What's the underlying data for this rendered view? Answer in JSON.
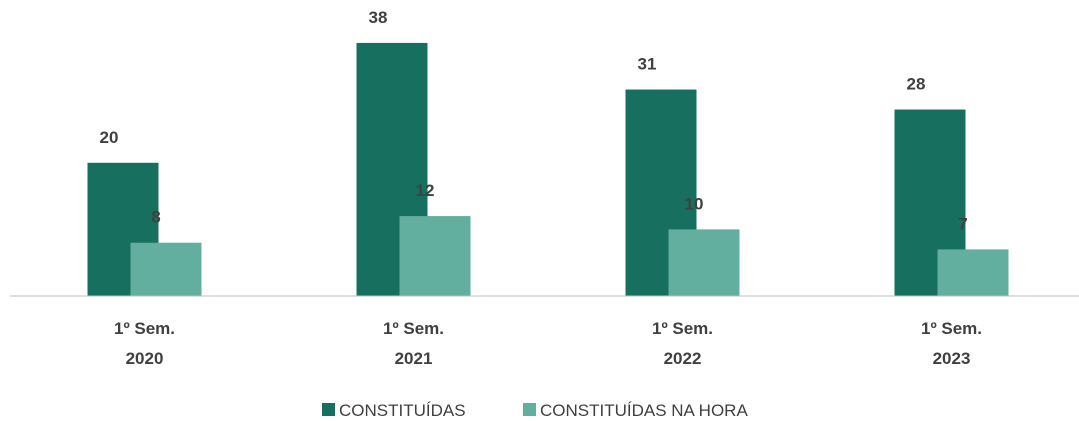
{
  "chart_data": {
    "type": "bar",
    "categories": [
      "1º Sem.\n2020",
      "1º Sem.\n2021",
      "1º Sem.\n2022",
      "1º Sem.\n2023"
    ],
    "series": [
      {
        "name": "CONSTITUÍDAS",
        "color": "#17705f",
        "values": [
          20,
          38,
          31,
          28
        ]
      },
      {
        "name": "CONSTITUÍDAS NA HORA",
        "color": "#62ae9f",
        "values": [
          8,
          12,
          10,
          7
        ]
      }
    ],
    "ylim": [
      0,
      40
    ],
    "legend": "bottom"
  }
}
